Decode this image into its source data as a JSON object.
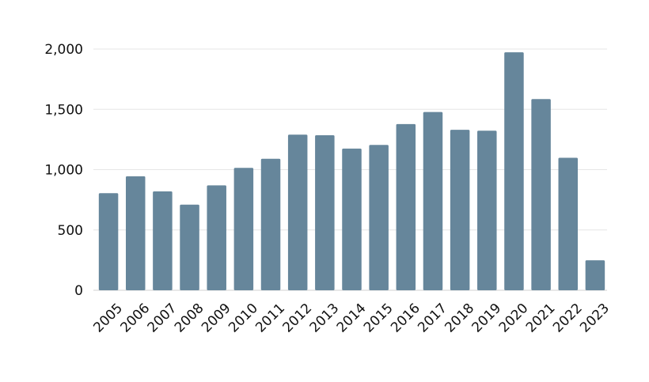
{
  "chart_data": {
    "type": "bar",
    "categories": [
      "2005",
      "2006",
      "2007",
      "2008",
      "2009",
      "2010",
      "2011",
      "2012",
      "2013",
      "2014",
      "2015",
      "2016",
      "2017",
      "2018",
      "2019",
      "2020",
      "2021",
      "2022",
      "2023"
    ],
    "values": [
      805,
      945,
      820,
      710,
      870,
      1015,
      1090,
      1290,
      1285,
      1175,
      1205,
      1378,
      1478,
      1330,
      1323,
      1973,
      1585,
      1098,
      248
    ],
    "ylim": [
      0,
      2000
    ],
    "yticks": [
      0,
      500,
      1000,
      1500,
      2000
    ],
    "ytick_labels": [
      "0",
      "500",
      "1,000",
      "1,500",
      "2,000"
    ],
    "grid": true,
    "bar_color": "#66869b"
  }
}
